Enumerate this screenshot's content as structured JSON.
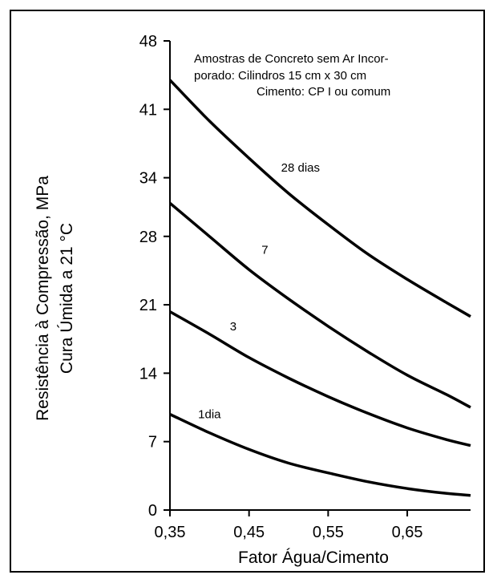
{
  "chart_data": {
    "type": "line",
    "title": "",
    "xlabel": "Fator Água/Cimento",
    "ylabel_line1": "Resistência à Compressão, MPa",
    "ylabel_line2": "Cura Úmida a 21 °C",
    "x_ticks": [
      "0,35",
      "0,45",
      "0,55",
      "0,65"
    ],
    "x_tick_values": [
      0.35,
      0.45,
      0.55,
      0.65
    ],
    "y_ticks": [
      "0",
      "7",
      "14",
      "21",
      "28",
      "34",
      "41",
      "48"
    ],
    "y_tick_values": [
      0,
      7,
      14,
      21,
      28,
      34,
      41,
      48
    ],
    "xlim": [
      0.35,
      0.73
    ],
    "ylim": [
      0,
      48
    ],
    "grid": false,
    "annotation": [
      "Amostras de Concreto sem Ar Incor-",
      "porado: Cilindros 15 cm x 30 cm",
      "Cimento: CP I ou comum"
    ],
    "series": [
      {
        "name": "28 dias",
        "x": [
          0.35,
          0.4,
          0.45,
          0.5,
          0.55,
          0.6,
          0.65,
          0.7,
          0.73
        ],
        "values": [
          44.0,
          39.8,
          36.0,
          32.4,
          29.2,
          26.2,
          23.6,
          21.2,
          19.8
        ]
      },
      {
        "name": "7",
        "x": [
          0.35,
          0.4,
          0.45,
          0.5,
          0.55,
          0.6,
          0.65,
          0.7,
          0.73
        ],
        "values": [
          31.4,
          28.0,
          24.6,
          21.6,
          18.8,
          16.2,
          13.8,
          11.8,
          10.5
        ]
      },
      {
        "name": "3",
        "x": [
          0.35,
          0.4,
          0.45,
          0.5,
          0.55,
          0.6,
          0.65,
          0.7,
          0.73
        ],
        "values": [
          20.3,
          18.0,
          15.6,
          13.5,
          11.6,
          9.9,
          8.4,
          7.2,
          6.6
        ]
      },
      {
        "name": "1dia",
        "x": [
          0.35,
          0.4,
          0.45,
          0.5,
          0.55,
          0.6,
          0.65,
          0.7,
          0.73
        ],
        "values": [
          9.8,
          7.9,
          6.2,
          4.8,
          3.8,
          2.9,
          2.2,
          1.7,
          1.5
        ]
      }
    ]
  }
}
